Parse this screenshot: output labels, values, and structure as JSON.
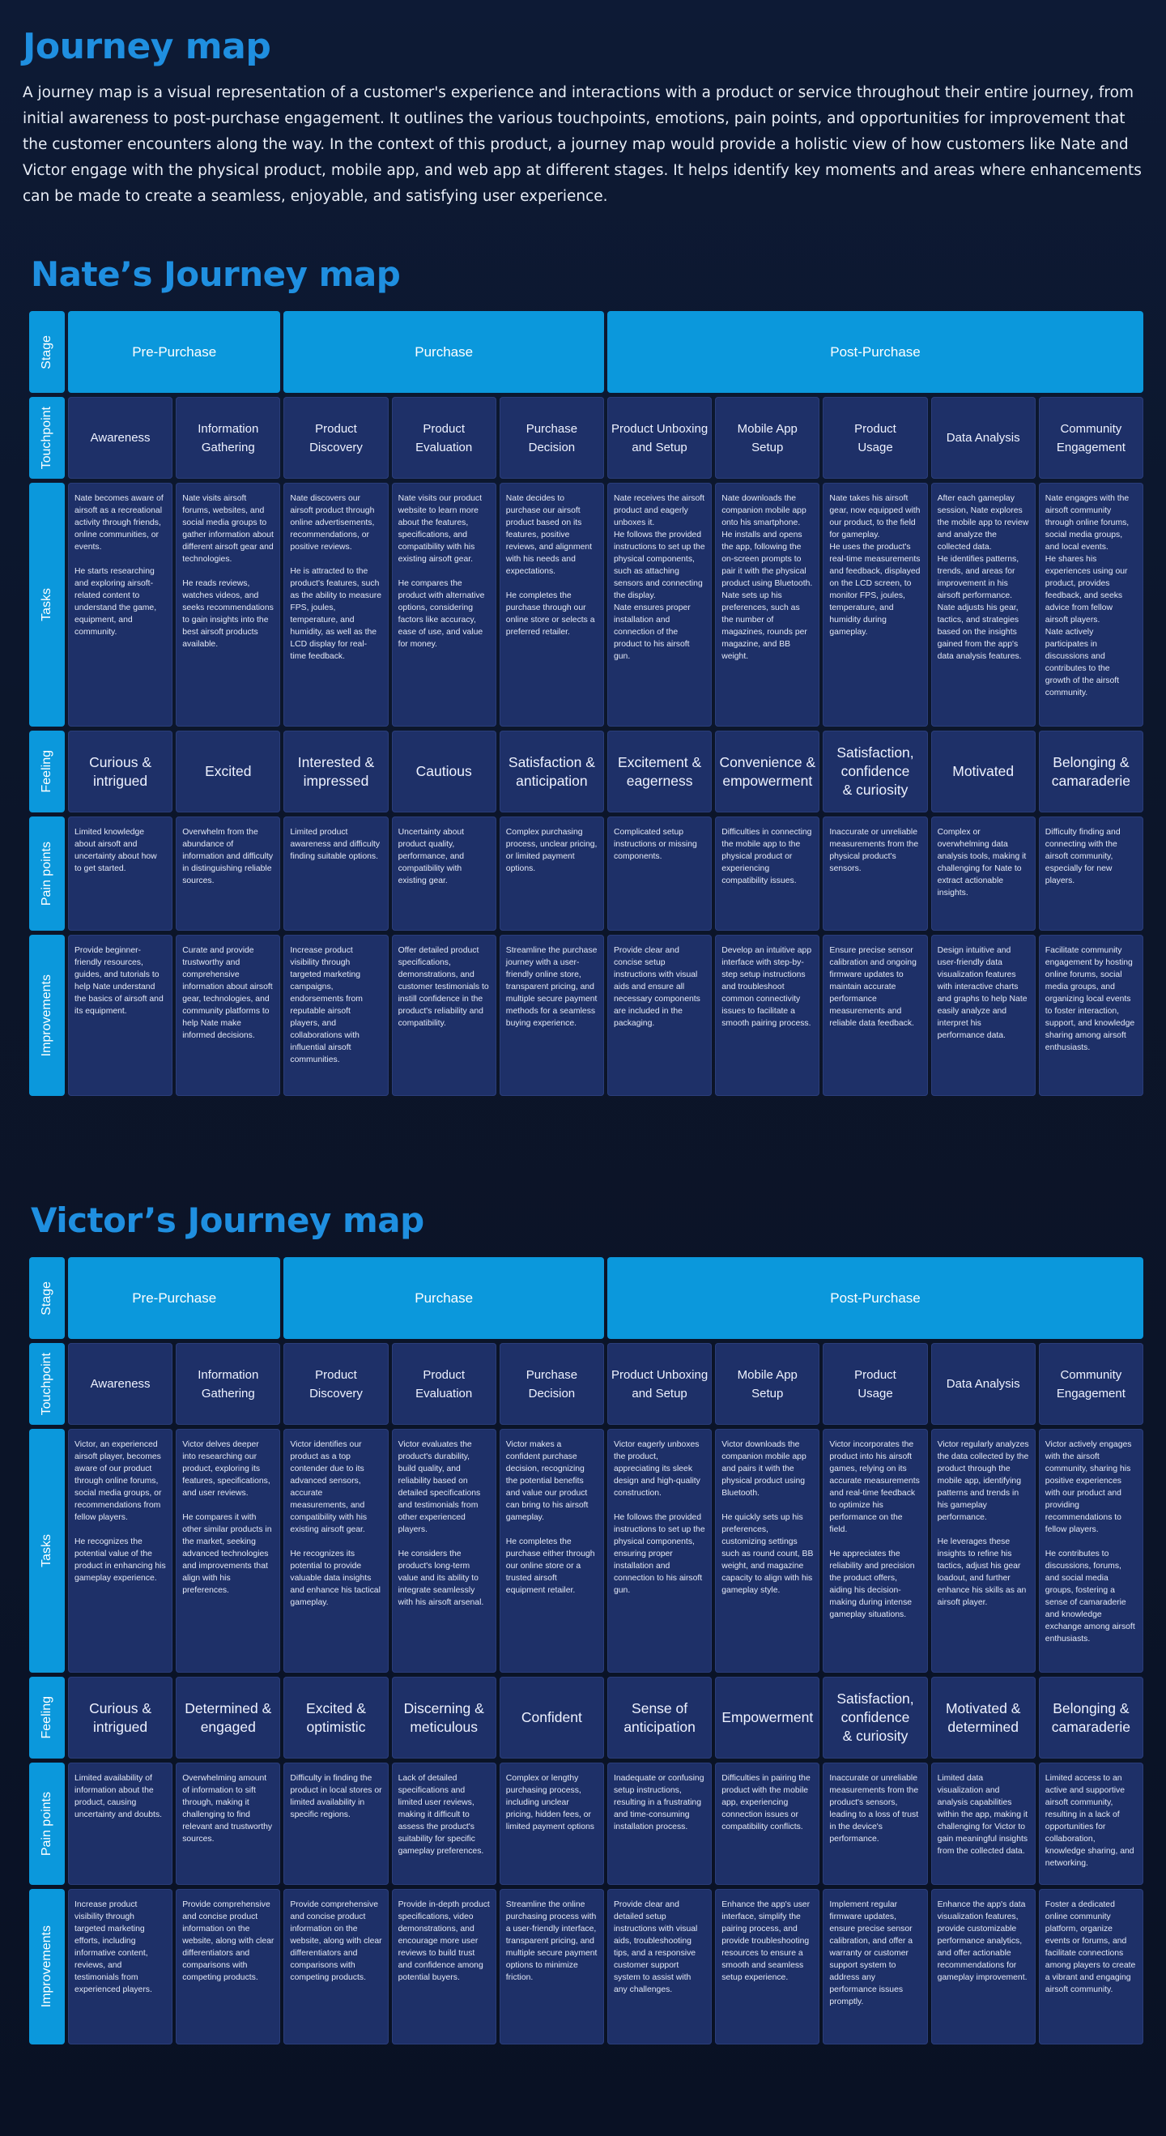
{
  "intro": {
    "title": "Journey map",
    "text": "A journey map is a visual representation of a customer's experience and interactions with a product or service throughout their entire journey, from initial awareness to post-purchase engagement. It outlines the various touchpoints, emotions, pain points, and opportunities for improvement that the customer encounters along the way. In the context of this product, a journey map would provide a holistic view of how customers like Nate and Victor engage with the physical product, mobile app, and web app at different stages. It helps identify key moments and areas where enhancements can be made to create a seamless, enjoyable, and satisfying user experience."
  },
  "row_labels": {
    "stage": "Stage",
    "touchpoint": "Touchpoint",
    "tasks": "Tasks",
    "feeling": "Feeling",
    "pain_points": "Pain points",
    "improvements": "Improvements"
  },
  "stages": [
    "Pre-Purchase",
    "Purchase",
    "Post-Purchase"
  ],
  "touchpoints": [
    "Awareness",
    "Information\nGathering",
    "Product\nDiscovery",
    "Product\nEvaluation",
    "Purchase\nDecision",
    "Product Unboxing\nand Setup",
    "Mobile App\nSetup",
    "Product\nUsage",
    "Data Analysis",
    "Community\nEngagement"
  ],
  "maps": [
    {
      "title": "Nate’s Journey map",
      "tasks": [
        "Nate becomes aware of airsoft as a recreational activity through friends, online communities, or events.\n\nHe starts researching and exploring airsoft-related content to understand the game, equipment, and community.",
        "Nate visits airsoft forums, websites, and social media groups to gather information about different airsoft gear and technologies.\n\nHe reads reviews, watches videos, and seeks recommendations to gain insights into the best airsoft products available.",
        "Nate discovers our airsoft product through online advertisements, recommendations, or positive reviews.\n\nHe is attracted to the product's features, such as the ability to measure FPS, joules, temperature, and humidity, as well as the LCD display for real-time feedback.",
        "Nate visits our product website to learn more about the features, specifications, and compatibility with his existing airsoft gear.\n\nHe compares the product with alternative options, considering factors like accuracy, ease of use, and value for money.",
        "Nate decides to purchase our airsoft product based on its features, positive reviews, and alignment with his needs and expectations.\n\nHe completes the purchase through our online store or selects a preferred retailer.",
        "Nate receives the airsoft product and eagerly unboxes it.\nHe follows the provided instructions to set up the physical components, such as attaching sensors and connecting the display.\nNate ensures proper installation and connection of the product to his airsoft gun.",
        "Nate downloads the companion mobile app onto his smartphone.\nHe installs and opens the app, following the on-screen prompts to pair it with the physical product using Bluetooth.\nNate sets up his preferences, such as the number of magazines, rounds per magazine, and BB weight.",
        "Nate takes his airsoft gear, now equipped with our product, to the field for gameplay.\nHe uses the product's real-time measurements and feedback, displayed on the LCD screen, to monitor FPS, joules, temperature, and humidity during gameplay.",
        "After each gameplay session, Nate explores the mobile app to review and analyze the collected data.\nHe identifies patterns, trends, and areas for improvement in his airsoft performance.\nNate adjusts his gear, tactics, and strategies based on the insights gained from the app's data analysis features.",
        "Nate engages with the airsoft community through online forums, social media groups, and local events.\nHe shares his experiences using our product, provides feedback, and seeks advice from fellow airsoft players.\nNate actively participates in discussions and contributes to the growth of the airsoft community."
      ],
      "feelings": [
        "Curious &\nintrigued",
        "Excited",
        "Interested &\nimpressed",
        "Cautious",
        "Satisfaction &\nanticipation",
        "Excitement &\neagerness",
        "Convenience &\nempowerment",
        "Satisfaction,\nconfidence\n& curiosity",
        "Motivated",
        "Belonging &\ncamaraderie"
      ],
      "pain_points": [
        "Limited knowledge about airsoft and uncertainty about how to get started.",
        "Overwhelm from the abundance of information and difficulty in distinguishing reliable sources.",
        "Limited product awareness and difficulty finding suitable options.",
        "Uncertainty about product quality, performance, and compatibility with existing gear.",
        " Complex purchasing process, unclear pricing, or limited payment options.",
        "Complicated setup instructions or missing components.",
        "Difficulties in connecting the mobile app to the physical product or experiencing compatibility issues.",
        "Inaccurate or unreliable measurements from the physical product's sensors.",
        "Complex or overwhelming data analysis tools, making it challenging for Nate to extract actionable insights.",
        "Difficulty finding and connecting with the airsoft community, especially for new players."
      ],
      "improvements": [
        "Provide beginner-friendly resources, guides, and tutorials to help Nate understand the basics of airsoft and its equipment.",
        "Curate and provide trustworthy and comprehensive information about airsoft gear, technologies, and community platforms to help Nate make informed decisions.",
        "Increase product visibility through targeted marketing campaigns, endorsements from reputable airsoft players, and collaborations with influential airsoft communities.",
        "Offer detailed product specifications, demonstrations, and customer testimonials to instill confidence in the product's reliability and compatibility.",
        "Streamline the purchase journey with a user-friendly online store, transparent pricing, and multiple secure payment methods for a seamless buying experience.",
        "Provide clear and concise setup instructions with visual aids and ensure all necessary components are included in the packaging.",
        "Develop an intuitive app interface with step-by-step setup instructions and troubleshoot common connectivity issues to facilitate a smooth pairing process.",
        "Ensure precise sensor calibration and ongoing firmware updates to maintain accurate performance measurements and reliable data feedback.",
        "Design intuitive and user-friendly data visualization features with interactive charts and graphs to help Nate easily analyze and interpret his performance data.",
        "Facilitate community engagement by hosting online forums, social media groups, and organizing local events to foster interaction, support, and knowledge sharing among airsoft enthusiasts."
      ]
    },
    {
      "title": "Victor’s Journey map",
      "tasks": [
        "Victor, an experienced airsoft player, becomes aware of our product through online forums, social media groups, or recommendations from fellow players.\n\nHe recognizes the potential value of the product in enhancing his gameplay experience.",
        "Victor delves deeper into researching our product, exploring its features, specifications, and user reviews.\n\nHe compares it with other similar products in the market, seeking advanced technologies and improvements that align with his preferences.",
        "Victor identifies our product as a top contender due to its advanced sensors, accurate measurements, and compatibility with his existing airsoft gear.\n\nHe recognizes its potential to provide valuable data insights and enhance his tactical gameplay.",
        "Victor evaluates the product's durability, build quality, and reliability based on detailed specifications and testimonials from other experienced players.\n\nHe considers the product's long-term value and its ability to integrate seamlessly with his airsoft arsenal.",
        "Victor makes a confident purchase decision, recognizing the potential benefits and value our product can bring to his airsoft gameplay.\n\nHe completes the purchase either through our online store or a trusted airsoft equipment retailer.",
        "Victor eagerly unboxes the product, appreciating its sleek design and high-quality construction.\n\nHe follows the provided instructions to set up the physical components, ensuring proper installation and connection to his airsoft gun.",
        "Victor downloads the companion mobile app and pairs it with the physical product using Bluetooth.\n\nHe quickly sets up his preferences, customizing settings such as round count, BB weight, and magazine capacity to align with his gameplay style.",
        "Victor incorporates the product into his airsoft games, relying on its accurate measurements and real-time feedback to optimize his performance on the field.\n\nHe appreciates the reliability and precision the product offers, aiding his decision-making during intense gameplay situations.",
        "Victor regularly analyzes the data collected by the product through the mobile app, identifying patterns and trends in his gameplay performance.\n\nHe leverages these insights to refine his tactics, adjust his gear loadout, and further enhance his skills as an airsoft player.",
        "Victor actively engages with the airsoft community, sharing his positive experiences with our product and providing recommendations to fellow players.\n\nHe contributes to discussions, forums, and social media groups, fostering a sense of camaraderie and knowledge exchange among airsoft enthusiasts."
      ],
      "feelings": [
        "Curious &\nintrigued",
        "Determined &\nengaged",
        "Excited &\noptimistic",
        "Discerning &\nmeticulous",
        "Confident",
        "Sense of\nanticipation",
        "Empowerment",
        "Satisfaction,\nconfidence\n& curiosity",
        "Motivated &\ndetermined",
        "Belonging &\ncamaraderie"
      ],
      "pain_points": [
        "Limited availability of information about the product, causing uncertainty and doubts.",
        "Overwhelming amount of information to sift through, making it challenging to find relevant and trustworthy sources.",
        "Difficulty in finding the product in local stores or limited availability in specific regions.",
        "Lack of detailed specifications and limited user reviews, making it difficult to assess the product's suitability for specific gameplay preferences.",
        "Complex or lengthy purchasing process, including unclear pricing, hidden fees, or limited payment options",
        "Inadequate or confusing setup instructions, resulting in a frustrating and time-consuming installation process.",
        "Difficulties in pairing the product with the mobile app, experiencing connection issues or compatibility conflicts.",
        "Inaccurate or unreliable measurements from the product's sensors, leading to a loss of trust in the device's performance.",
        "Limited data visualization and analysis capabilities within the app, making it challenging for Victor to gain meaningful insights from the collected data.",
        "Limited access to an active and supportive airsoft community, resulting in a lack of opportunities for collaboration, knowledge sharing, and networking."
      ],
      "improvements": [
        "Increase product visibility through targeted marketing efforts, including informative content, reviews, and testimonials from experienced players.",
        "Provide comprehensive and concise product information on the website, along with clear differentiators and comparisons with competing products.",
        "Provide comprehensive and concise product information on the website, along with clear differentiators and comparisons with competing products.",
        "Provide in-depth product specifications, video demonstrations, and encourage more user reviews to build trust and confidence among potential buyers.",
        "Streamline the online purchasing process with a user-friendly interface, transparent pricing, and multiple secure payment options to minimize friction.",
        "Provide clear and detailed setup instructions with visual aids, troubleshooting tips, and a responsive customer support system to assist with any challenges.",
        "Enhance the app's user interface, simplify the pairing process, and provide troubleshooting resources to ensure a smooth and seamless setup experience.",
        "Implement regular firmware updates, ensure precise sensor calibration, and offer a warranty or customer support system to address any performance issues promptly.",
        "Enhance the app's data visualization features, provide customizable performance analytics, and offer actionable recommendations for gameplay improvement.",
        "Foster a dedicated online community platform, organize events or forums, and facilitate connections among players to create a vibrant and engaging airsoft community."
      ]
    }
  ]
}
